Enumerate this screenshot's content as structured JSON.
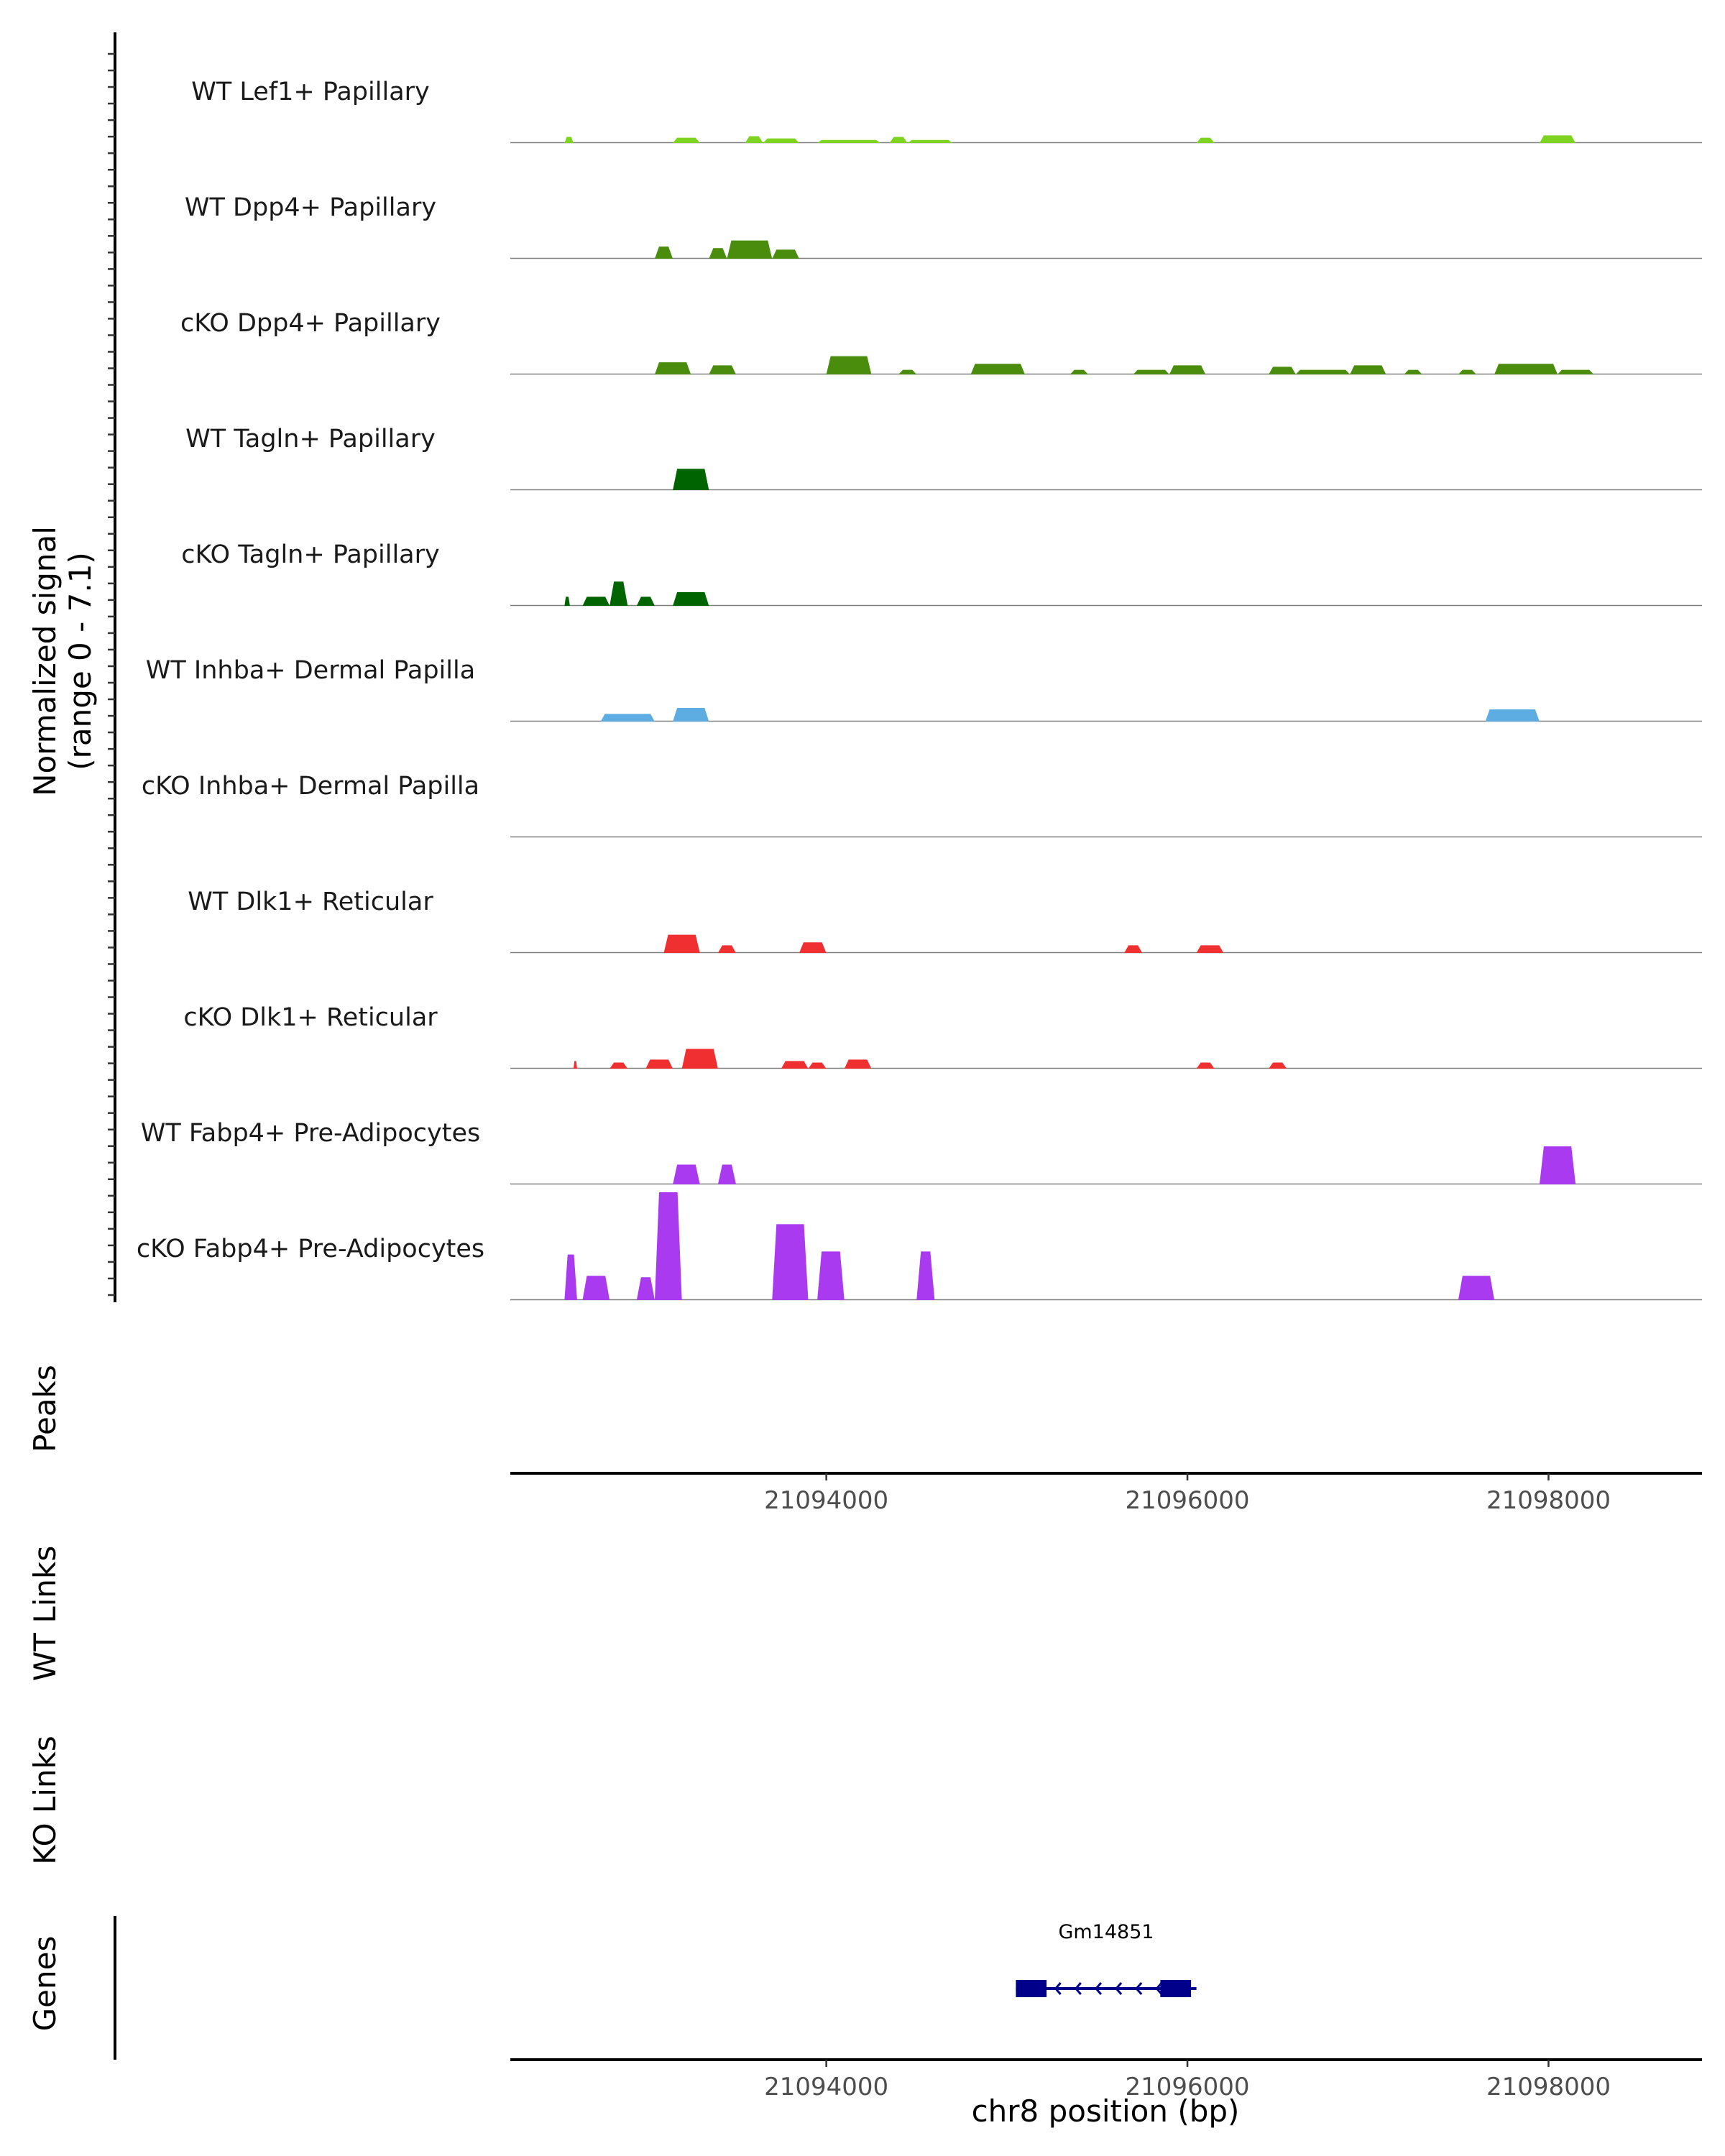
{
  "chart_data": {
    "type": "area",
    "title": "",
    "xlabel": "chr8 position (bp)",
    "ylabel": "Normalized signal",
    "ylabel_range": "(range 0 - 7.1)",
    "ylim": [
      0,
      7.1
    ],
    "xlim": [
      21092250,
      21098850
    ],
    "xticks": [
      21094000,
      21096000,
      21098000
    ],
    "xtick_labels": [
      "21094000",
      "21096000",
      "21098000"
    ],
    "panels": {
      "peaks": "Peaks",
      "wt_links": "WT Links",
      "ko_links": "KO Links",
      "genes": "Genes"
    },
    "tracks": [
      {
        "name": "WT Lef1+ Papillary",
        "color": "#7ED321",
        "peaks": [
          [
            21092550,
            21092600,
            0.4
          ],
          [
            21093150,
            21093300,
            0.35
          ],
          [
            21093550,
            21093650,
            0.45
          ],
          [
            21093650,
            21093850,
            0.3
          ],
          [
            21093950,
            21094300,
            0.2
          ],
          [
            21094350,
            21094450,
            0.4
          ],
          [
            21094450,
            21094700,
            0.2
          ],
          [
            21096050,
            21096150,
            0.35
          ],
          [
            21097950,
            21098150,
            0.5
          ]
        ]
      },
      {
        "name": "WT Dpp4+ Papillary",
        "color": "#4A8C0B",
        "peaks": [
          [
            21093050,
            21093150,
            0.8
          ],
          [
            21093350,
            21093450,
            0.7
          ],
          [
            21093450,
            21093700,
            1.2
          ],
          [
            21093700,
            21093850,
            0.6
          ]
        ]
      },
      {
        "name": "cKO Dpp4+ Papillary",
        "color": "#4A8C0B",
        "peaks": [
          [
            21093050,
            21093250,
            0.8
          ],
          [
            21093350,
            21093500,
            0.6
          ],
          [
            21094000,
            21094250,
            1.2
          ],
          [
            21094400,
            21094500,
            0.3
          ],
          [
            21094800,
            21095100,
            0.7
          ],
          [
            21095350,
            21095450,
            0.3
          ],
          [
            21095700,
            21095900,
            0.3
          ],
          [
            21095900,
            21096100,
            0.6
          ],
          [
            21096450,
            21096600,
            0.5
          ],
          [
            21096600,
            21096900,
            0.3
          ],
          [
            21096900,
            21097100,
            0.6
          ],
          [
            21097200,
            21097300,
            0.3
          ],
          [
            21097500,
            21097600,
            0.3
          ],
          [
            21097700,
            21098050,
            0.7
          ],
          [
            21098050,
            21098250,
            0.3
          ]
        ]
      },
      {
        "name": "WT Tagln+ Papillary",
        "color": "#006400",
        "peaks": [
          [
            21093150,
            21093350,
            1.4
          ]
        ]
      },
      {
        "name": "cKO Tagln+ Papillary",
        "color": "#006400",
        "peaks": [
          [
            21092550,
            21092580,
            0.6
          ],
          [
            21092650,
            21092800,
            0.6
          ],
          [
            21092800,
            21092900,
            1.6
          ],
          [
            21092950,
            21093050,
            0.6
          ],
          [
            21093150,
            21093350,
            0.9
          ]
        ]
      },
      {
        "name": "WT Inhba+ Dermal Papilla",
        "color": "#5DADE2",
        "peaks": [
          [
            21092750,
            21093050,
            0.5
          ],
          [
            21093150,
            21093350,
            0.9
          ],
          [
            21097650,
            21097950,
            0.8
          ]
        ]
      },
      {
        "name": "cKO Inhba+ Dermal Papilla",
        "color": "#5DADE2",
        "peaks": []
      },
      {
        "name": "WT Dlk1+ Reticular",
        "color": "#F03030",
        "peaks": [
          [
            21093100,
            21093300,
            1.2
          ],
          [
            21093400,
            21093500,
            0.5
          ],
          [
            21093850,
            21094000,
            0.7
          ],
          [
            21095650,
            21095750,
            0.5
          ],
          [
            21096050,
            21096200,
            0.5
          ]
        ]
      },
      {
        "name": "cKO Dlk1+ Reticular",
        "color": "#F03030",
        "peaks": [
          [
            21092600,
            21092620,
            0.5
          ],
          [
            21092800,
            21092900,
            0.4
          ],
          [
            21093000,
            21093150,
            0.6
          ],
          [
            21093200,
            21093400,
            1.3
          ],
          [
            21093750,
            21093900,
            0.5
          ],
          [
            21093900,
            21094000,
            0.4
          ],
          [
            21094100,
            21094250,
            0.6
          ],
          [
            21096050,
            21096150,
            0.4
          ],
          [
            21096450,
            21096550,
            0.4
          ]
        ]
      },
      {
        "name": "WT Fabp4+ Pre-Adipocytes",
        "color": "#A93AF0",
        "peaks": [
          [
            21093150,
            21093300,
            1.3
          ],
          [
            21093400,
            21093500,
            1.3
          ],
          [
            21097950,
            21098150,
            2.5
          ]
        ]
      },
      {
        "name": "cKO Fabp4+ Pre-Adipocytes",
        "color": "#A93AF0",
        "peaks": [
          [
            21092550,
            21092620,
            3.0
          ],
          [
            21092650,
            21092800,
            1.6
          ],
          [
            21092950,
            21093050,
            1.5
          ],
          [
            21093050,
            21093200,
            7.1
          ],
          [
            21093700,
            21093900,
            5.0
          ],
          [
            21093950,
            21094100,
            3.2
          ],
          [
            21094500,
            21094600,
            3.2
          ],
          [
            21097500,
            21097700,
            1.6
          ]
        ]
      }
    ],
    "genes": [
      {
        "name": "Gm14851",
        "start": 21095050,
        "end": 21096050,
        "strand": "-",
        "exons": [
          [
            21095050,
            21095220
          ],
          [
            21095850,
            21096020
          ]
        ]
      }
    ]
  }
}
